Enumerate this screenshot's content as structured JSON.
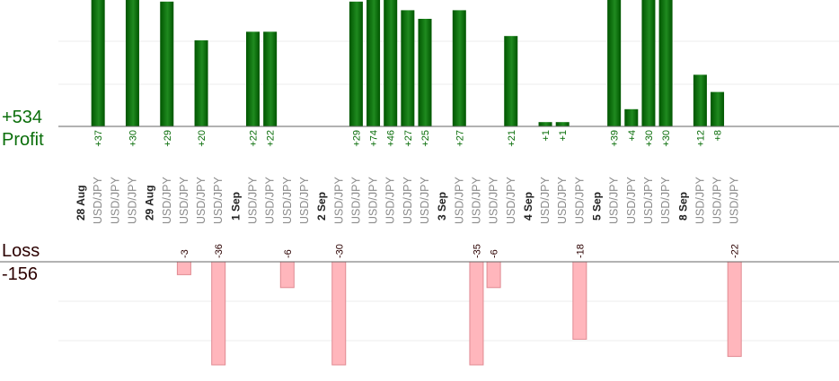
{
  "labels": {
    "profit_total": "+534",
    "profit_label": "Profit",
    "loss_label": "Loss",
    "loss_total": "-156"
  },
  "colors": {
    "profit_bar_dark": "#005500",
    "profit_bar_light": "#1f8a1f",
    "profit_text": "#0a6e0a",
    "loss_bar_fill": "#ffb6bc",
    "loss_bar_border": "#e08a92",
    "loss_text": "#2b0000",
    "symbol_text": "#8a8a8a",
    "date_text": "#222222",
    "baseline": "#666666",
    "gridline": "#eeeeee"
  },
  "chart_data": {
    "type": "bar",
    "y_profit_range": [
      0,
      30
    ],
    "y_loss_range": [
      0,
      24
    ],
    "columns": [
      {
        "label": "28 Aug",
        "kind": "date"
      },
      {
        "label": "USD/JPY",
        "kind": "trade",
        "value": 37,
        "value_label": "+37"
      },
      {
        "label": "USD/JPY",
        "kind": "trade"
      },
      {
        "label": "USD/JPY",
        "kind": "trade",
        "value": 30,
        "value_label": "+30"
      },
      {
        "label": "29 Aug",
        "kind": "date"
      },
      {
        "label": "USD/JPY",
        "kind": "trade",
        "value": 29,
        "value_label": "+29"
      },
      {
        "label": "USD/JPY",
        "kind": "trade",
        "value": -3,
        "value_label": "-3"
      },
      {
        "label": "USD/JPY",
        "kind": "trade",
        "value": 20,
        "value_label": "+20"
      },
      {
        "label": "USD/JPY",
        "kind": "trade",
        "value": -36,
        "value_label": "-36"
      },
      {
        "label": "1 Sep",
        "kind": "date"
      },
      {
        "label": "USD/JPY",
        "kind": "trade",
        "value": 22,
        "value_label": "+22"
      },
      {
        "label": "USD/JPY",
        "kind": "trade",
        "value": 22,
        "value_label": "+22"
      },
      {
        "label": "USD/JPY",
        "kind": "trade",
        "value": -6,
        "value_label": "-6"
      },
      {
        "label": "USD/JPY",
        "kind": "trade"
      },
      {
        "label": "2 Sep",
        "kind": "date"
      },
      {
        "label": "USD/JPY",
        "kind": "trade",
        "value": -30,
        "value_label": "-30"
      },
      {
        "label": "USD/JPY",
        "kind": "trade",
        "value": 29,
        "value_label": "+29"
      },
      {
        "label": "USD/JPY",
        "kind": "trade",
        "value": 74,
        "value_label": "+74"
      },
      {
        "label": "USD/JPY",
        "kind": "trade",
        "value": 46,
        "value_label": "+46"
      },
      {
        "label": "USD/JPY",
        "kind": "trade",
        "value": 27,
        "value_label": "+27"
      },
      {
        "label": "USD/JPY",
        "kind": "trade",
        "value": 25,
        "value_label": "+25"
      },
      {
        "label": "3 Sep",
        "kind": "date"
      },
      {
        "label": "USD/JPY",
        "kind": "trade",
        "value": 27,
        "value_label": "+27"
      },
      {
        "label": "USD/JPY",
        "kind": "trade",
        "value": -35,
        "value_label": "-35"
      },
      {
        "label": "USD/JPY",
        "kind": "trade",
        "value": -6,
        "value_label": "-6"
      },
      {
        "label": "USD/JPY",
        "kind": "trade",
        "value": 21,
        "value_label": "+21"
      },
      {
        "label": "4 Sep",
        "kind": "date"
      },
      {
        "label": "USD/JPY",
        "kind": "trade",
        "value": 1,
        "value_label": "+1"
      },
      {
        "label": "USD/JPY",
        "kind": "trade",
        "value": 1,
        "value_label": "+1"
      },
      {
        "label": "USD/JPY",
        "kind": "trade",
        "value": -18,
        "value_label": "-18"
      },
      {
        "label": "5 Sep",
        "kind": "date"
      },
      {
        "label": "USD/JPY",
        "kind": "trade",
        "value": 39,
        "value_label": "+39"
      },
      {
        "label": "USD/JPY",
        "kind": "trade",
        "value": 4,
        "value_label": "+4"
      },
      {
        "label": "USD/JPY",
        "kind": "trade",
        "value": 30,
        "value_label": "+30"
      },
      {
        "label": "USD/JPY",
        "kind": "trade",
        "value": 30,
        "value_label": "+30"
      },
      {
        "label": "8 Sep",
        "kind": "date"
      },
      {
        "label": "USD/JPY",
        "kind": "trade",
        "value": 12,
        "value_label": "+12"
      },
      {
        "label": "USD/JPY",
        "kind": "trade",
        "value": 8,
        "value_label": "+8"
      },
      {
        "label": "USD/JPY",
        "kind": "trade",
        "value": -22,
        "value_label": "-22"
      }
    ]
  }
}
